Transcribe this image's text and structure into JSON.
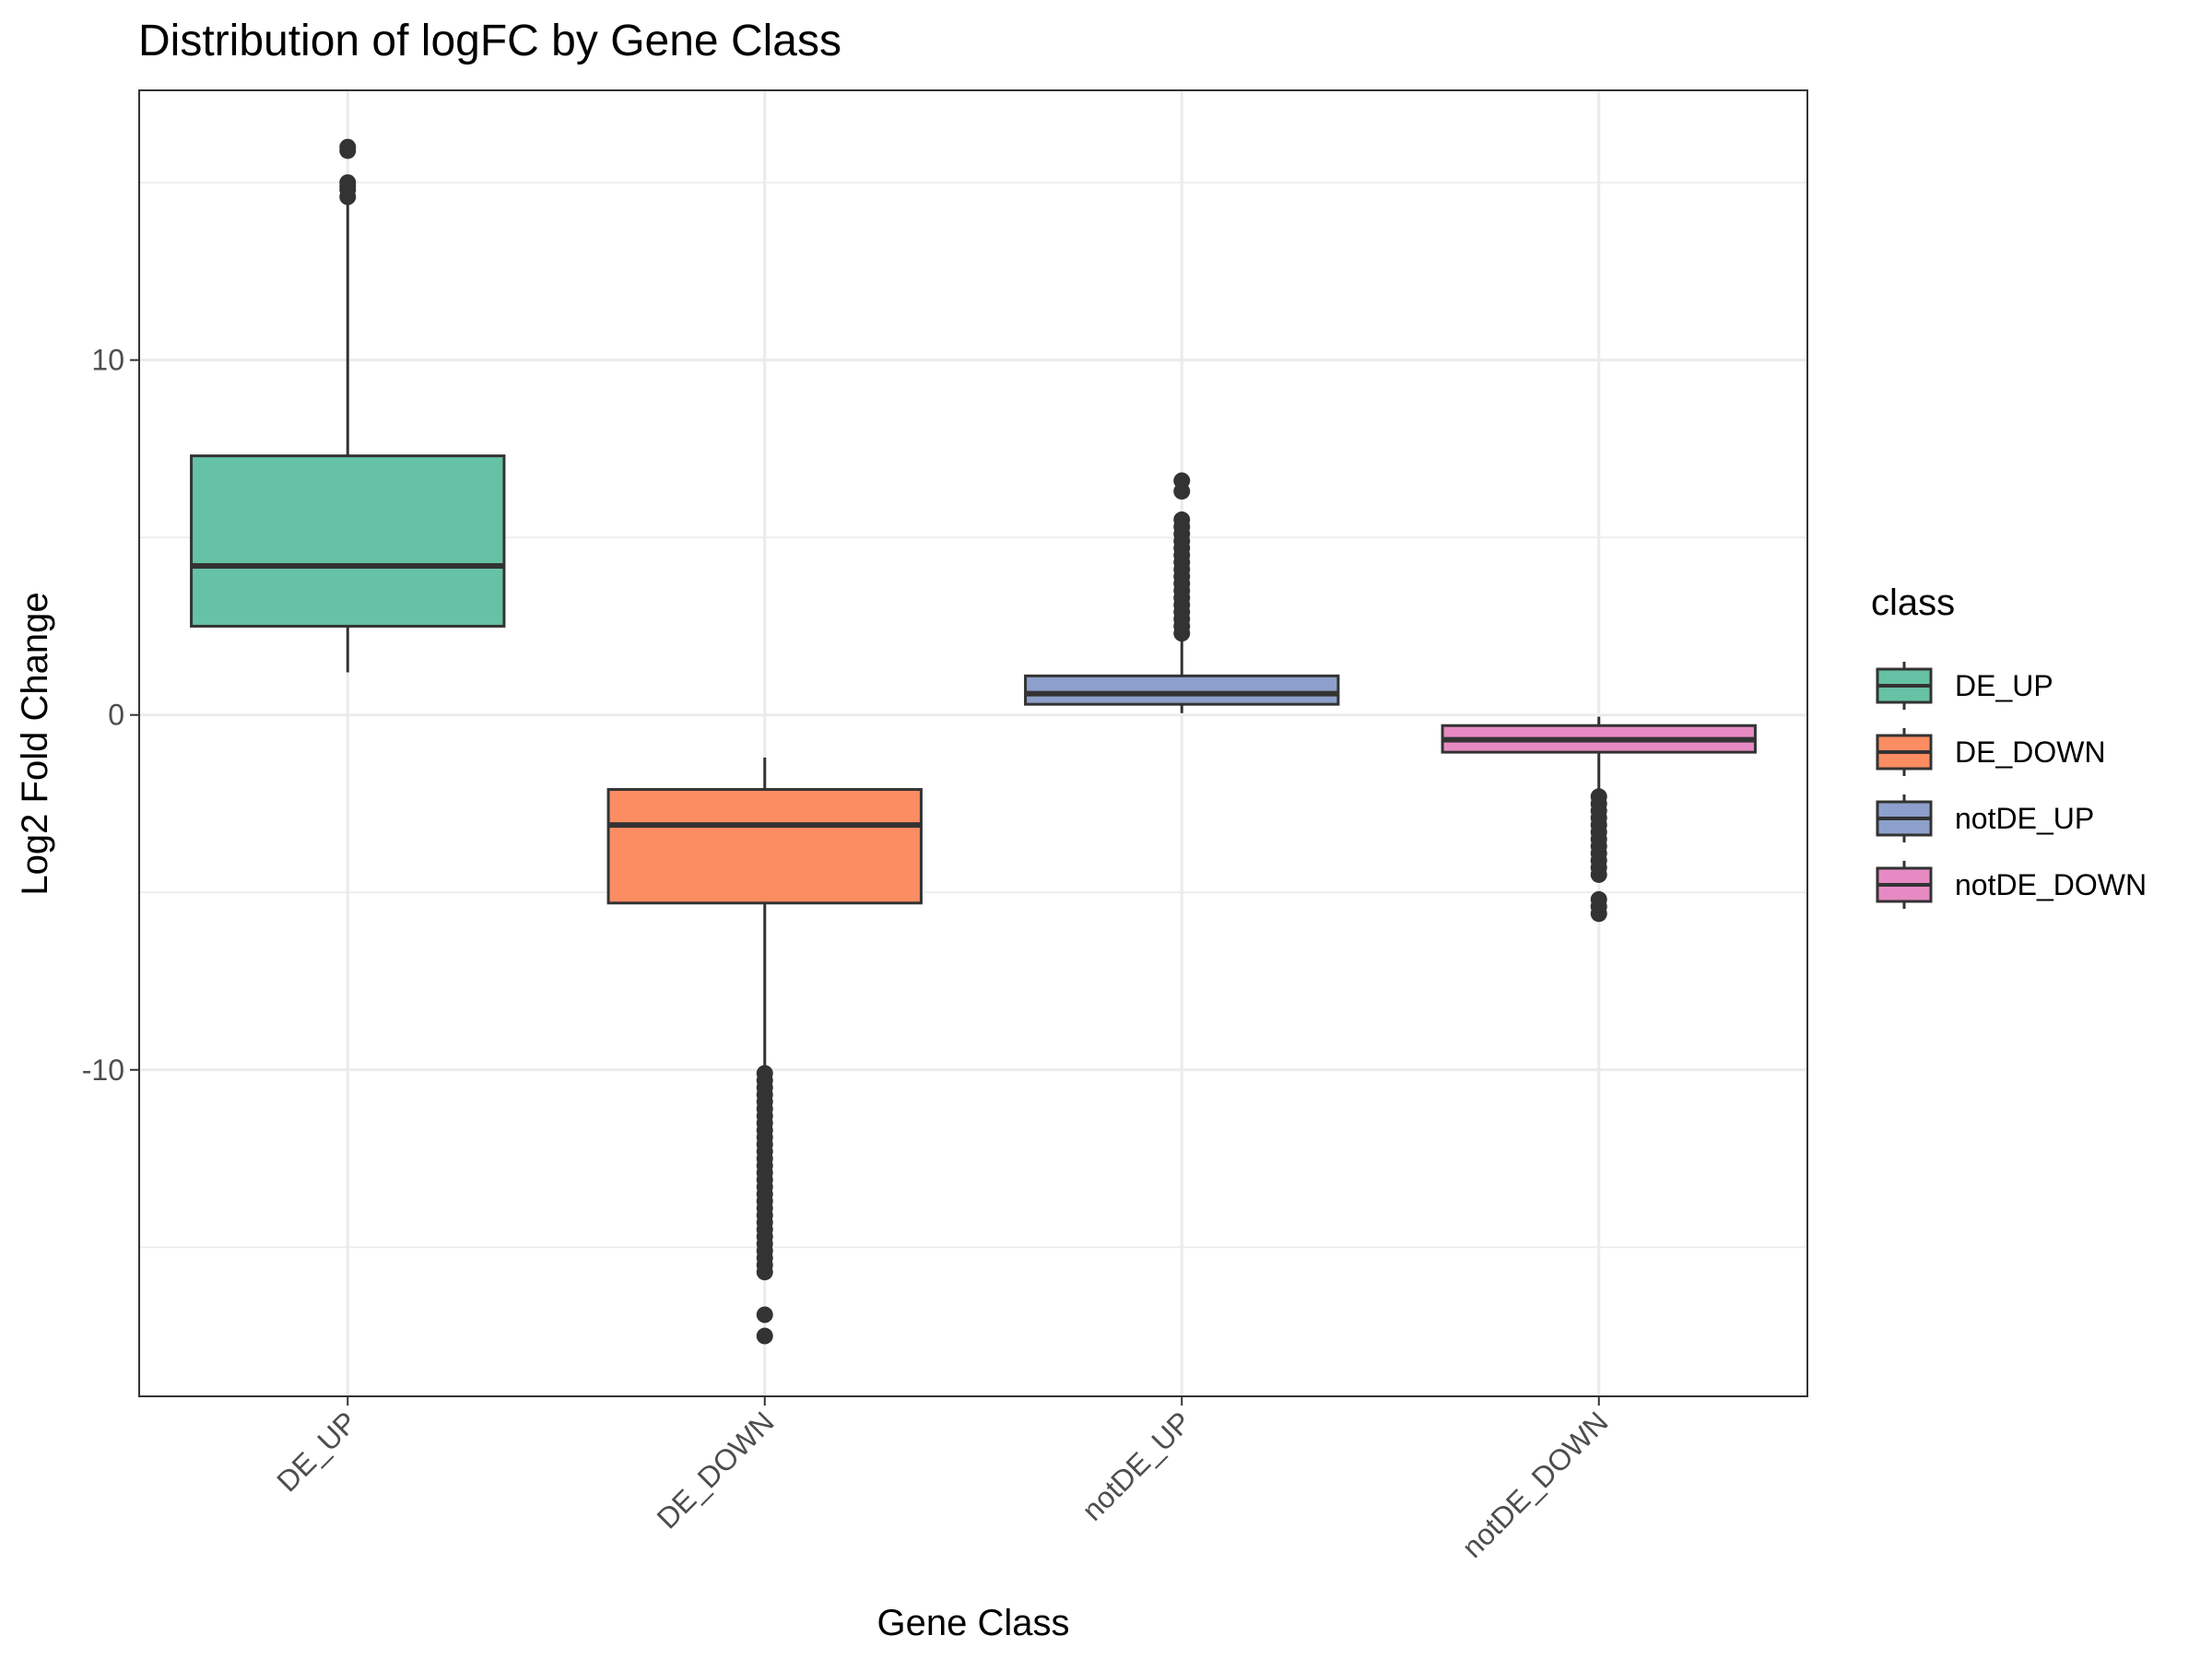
{
  "chart_data": {
    "type": "box",
    "title": "Distribution of logFC by Gene Class",
    "xlabel": "Gene Class",
    "ylabel": "Log2 Fold Change",
    "ylim": [
      -19.2,
      17.6
    ],
    "yticks": [
      -10,
      0,
      10
    ],
    "ytick_labels": [
      "-10",
      "0",
      "10"
    ],
    "grid": true,
    "legend": {
      "title": "class",
      "position": "right"
    },
    "categories": [
      "DE_UP",
      "DE_DOWN",
      "notDE_UP",
      "notDE_DOWN"
    ],
    "series": [
      {
        "name": "DE_UP",
        "color": "#66c2a5",
        "box": {
          "whisker_low": 1.2,
          "q1": 2.5,
          "median": 4.2,
          "q3": 7.3,
          "whisker_high": 14.4
        },
        "outliers": [
          14.6,
          14.8,
          14.9,
          15.0,
          15.9,
          16.0
        ]
      },
      {
        "name": "DE_DOWN",
        "color": "#fc8d62",
        "box": {
          "whisker_low": -10.0,
          "q1": -5.3,
          "median": -3.1,
          "q3": -2.1,
          "whisker_high": -1.2
        },
        "outliers": [
          -10.1,
          -10.3,
          -10.5,
          -10.7,
          -10.9,
          -11.1,
          -11.3,
          -11.5,
          -11.7,
          -11.9,
          -12.1,
          -12.3,
          -12.5,
          -12.7,
          -12.9,
          -13.1,
          -13.3,
          -13.5,
          -13.7,
          -13.9,
          -14.1,
          -14.3,
          -14.5,
          -14.7,
          -14.9,
          -15.1,
          -15.3,
          -15.5,
          -15.7,
          -16.9,
          -17.5
        ]
      },
      {
        "name": "notDE_UP",
        "color": "#8da0cb",
        "box": {
          "whisker_low": 0.05,
          "q1": 0.3,
          "median": 0.6,
          "q3": 1.1,
          "whisker_high": 2.2
        },
        "outliers": [
          2.3,
          2.5,
          2.7,
          2.9,
          3.1,
          3.3,
          3.5,
          3.7,
          3.9,
          4.1,
          4.3,
          4.5,
          4.7,
          4.9,
          5.1,
          5.3,
          5.5,
          6.3,
          6.6
        ]
      },
      {
        "name": "notDE_DOWN",
        "color": "#e78ac3",
        "box": {
          "whisker_low": -2.2,
          "q1": -1.05,
          "median": -0.7,
          "q3": -0.3,
          "whisker_high": -0.05
        },
        "outliers": [
          -2.3,
          -2.5,
          -2.7,
          -2.9,
          -3.1,
          -3.3,
          -3.5,
          -3.7,
          -3.9,
          -4.1,
          -4.3,
          -4.5,
          -5.2,
          -5.4,
          -5.6
        ]
      }
    ]
  }
}
